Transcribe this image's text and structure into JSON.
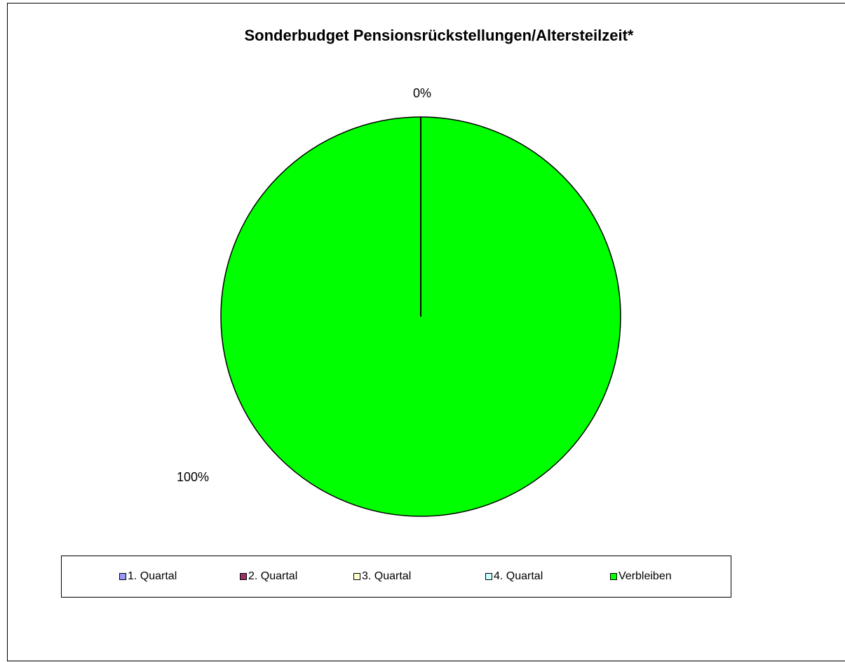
{
  "chart_data": {
    "type": "pie",
    "title": "Sonderbudget Pensionsrückstellungen/Altersteilzeit*",
    "slices": [
      {
        "name": "1. Quartal",
        "value": 0,
        "color": "#9999FF"
      },
      {
        "name": "2. Quartal",
        "value": 0,
        "color": "#993366"
      },
      {
        "name": "3. Quartal",
        "value": 0,
        "color": "#FFFFCC"
      },
      {
        "name": "4. Quartal",
        "value": 0,
        "color": "#CCFFFF"
      },
      {
        "name": "Verbleiben",
        "value": 100,
        "color": "#00FF00"
      }
    ],
    "data_labels": [
      "0%",
      "100%"
    ],
    "legend_position": "bottom"
  }
}
